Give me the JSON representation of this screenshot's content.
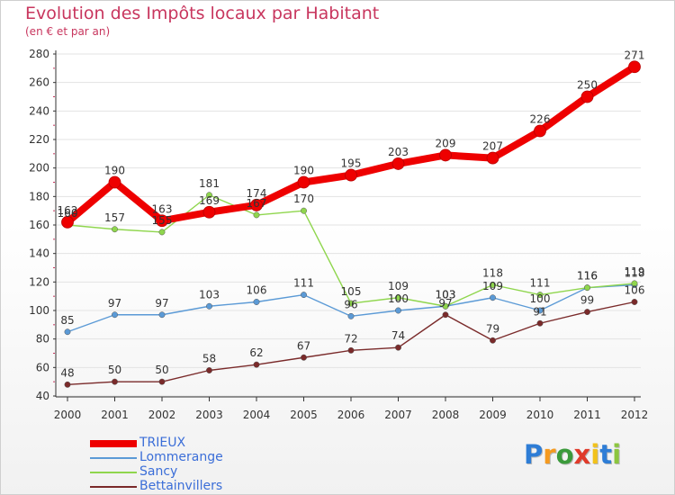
{
  "chart_data": {
    "type": "line",
    "title": "Evolution des Impôts locaux par Habitant",
    "subtitle": "(en € et par an)",
    "xlabel": "",
    "ylabel": "",
    "ylim": [
      40,
      280
    ],
    "yticks": [
      40,
      60,
      80,
      100,
      120,
      140,
      160,
      180,
      200,
      220,
      240,
      260,
      280
    ],
    "categories": [
      "2000",
      "2001",
      "2002",
      "2003",
      "2004",
      "2005",
      "2006",
      "2007",
      "2008",
      "2009",
      "2010",
      "2011",
      "2012"
    ],
    "series": [
      {
        "name": "TRIEUX",
        "color": "#ee0000",
        "values": [
          162,
          190,
          163,
          169,
          174,
          190,
          195,
          203,
          209,
          207,
          226,
          250,
          271
        ],
        "labels": [
          "162",
          "190",
          "163",
          "169",
          "174",
          "190",
          "195",
          "203",
          "209",
          "207",
          "226",
          "250",
          "271"
        ]
      },
      {
        "name": "Lommerange",
        "color": "#5b9ad6",
        "values": [
          85,
          97,
          97,
          103,
          106,
          111,
          96,
          100,
          103,
          109,
          100,
          116,
          118
        ],
        "labels": [
          "85",
          "97",
          "97",
          "103",
          "106",
          "111",
          "96",
          "100",
          "103",
          "109",
          "100",
          "116",
          "118"
        ]
      },
      {
        "name": "Sancy",
        "color": "#8fd64d",
        "values": [
          160,
          157,
          155,
          181,
          167,
          170,
          105,
          109,
          103,
          118,
          111,
          116,
          119
        ],
        "labels": [
          "160",
          "157",
          "155",
          "181",
          "167",
          "170",
          "105",
          "109",
          "103",
          "118",
          "111",
          "116",
          "119"
        ]
      },
      {
        "name": "Bettainvillers",
        "color": "#7a2a2a",
        "values": [
          48,
          50,
          50,
          58,
          62,
          67,
          72,
          74,
          97,
          79,
          91,
          99,
          106
        ],
        "labels": [
          "48",
          "50",
          "50",
          "58",
          "62",
          "67",
          "72",
          "74",
          "97",
          "79",
          "91",
          "99",
          "106"
        ]
      }
    ],
    "legend_position": "bottom-left"
  },
  "logo": {
    "letters": [
      "P",
      "r",
      "o",
      "x",
      "i",
      "t",
      "i"
    ],
    "colors": [
      "#2e7dd6",
      "#f59a1f",
      "#3b9a3b",
      "#e03a2a",
      "#f2c21a",
      "#2e7dd6",
      "#8cc63f"
    ]
  }
}
